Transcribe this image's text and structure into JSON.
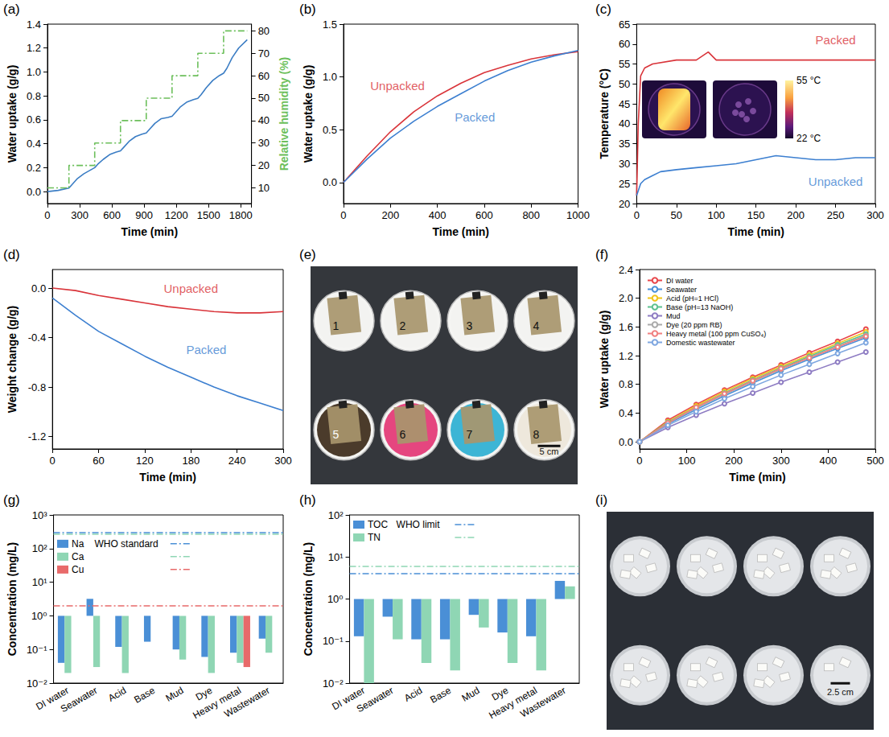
{
  "chart_data": [
    {
      "panel": "(a)",
      "type": "line",
      "x_label": "Time (min)",
      "y_label": "Water uptake (g/g)",
      "y2_label": "Relative humidity (%)",
      "xlim": [
        0,
        1900
      ],
      "xticks": [
        0,
        300,
        600,
        900,
        1200,
        1500,
        1800
      ],
      "ylim": [
        -0.1,
        1.4
      ],
      "yticks": [
        {
          "value": 0,
          "label": "0.0"
        },
        0.2,
        0.4,
        0.6,
        0.8,
        {
          "value": 1,
          "label": "1.0"
        },
        1.2,
        1.4
      ],
      "y2lim": [
        3,
        83
      ],
      "y2ticks": [
        10,
        20,
        30,
        40,
        50,
        60,
        70,
        80
      ],
      "grid": false,
      "series": [
        {
          "color": "#3b7dc4",
          "x": [
            0,
            100,
            200,
            230,
            280,
            340,
            400,
            440,
            470,
            520,
            580,
            640,
            680,
            710,
            760,
            820,
            880,
            920,
            950,
            1000,
            1060,
            1120,
            1160,
            1190,
            1240,
            1300,
            1360,
            1400,
            1430,
            1480,
            1540,
            1600,
            1640,
            1670,
            1720,
            1780,
            1860
          ],
          "values": [
            0,
            0.01,
            0.03,
            0.06,
            0.11,
            0.15,
            0.18,
            0.2,
            0.23,
            0.27,
            0.31,
            0.33,
            0.34,
            0.37,
            0.42,
            0.46,
            0.48,
            0.49,
            0.52,
            0.57,
            0.61,
            0.62,
            0.63,
            0.66,
            0.71,
            0.75,
            0.77,
            0.78,
            0.81,
            0.87,
            0.93,
            0.97,
            0.99,
            1.03,
            1.12,
            1.2,
            1.27
          ]
        },
        {
          "axis": "y2",
          "color": "#6cbf5b",
          "line_style": "dashdot",
          "x": [
            0,
            200,
            200,
            440,
            440,
            680,
            680,
            920,
            920,
            1160,
            1160,
            1400,
            1400,
            1640,
            1640,
            1860
          ],
          "values": [
            10,
            10,
            20,
            20,
            30,
            30,
            40,
            40,
            50,
            50,
            60,
            60,
            70,
            70,
            80,
            80
          ]
        }
      ]
    },
    {
      "panel": "(b)",
      "type": "line",
      "x_label": "Time (min)",
      "y_label": "Water uptake (g/g)",
      "xlim": [
        0,
        1000
      ],
      "xticks": [
        0,
        200,
        400,
        600,
        800,
        1000
      ],
      "ylim": [
        -0.2,
        1.5
      ],
      "yticks": [
        {
          "value": 0,
          "label": "0.0"
        },
        0.5,
        {
          "value": 1,
          "label": "1.0"
        },
        1.5
      ],
      "grid": false,
      "series": [
        {
          "color": "#d9343a",
          "x": [
            0,
            100,
            200,
            300,
            400,
            500,
            600,
            700,
            800,
            900,
            1000
          ],
          "values": [
            0,
            0.25,
            0.48,
            0.67,
            0.82,
            0.94,
            1.04,
            1.11,
            1.17,
            1.21,
            1.24
          ]
        },
        {
          "color": "#3c7fd0",
          "x": [
            0,
            100,
            200,
            300,
            400,
            500,
            600,
            700,
            800,
            900,
            1000
          ],
          "values": [
            0,
            0.22,
            0.42,
            0.58,
            0.72,
            0.84,
            0.96,
            1.06,
            1.14,
            1.2,
            1.25
          ]
        }
      ],
      "annotations": [
        {
          "text": "Unpacked",
          "x": 230,
          "y": 0.92,
          "color": "#d9343a"
        },
        {
          "text": "Packed",
          "x": 560,
          "y": 0.62,
          "color": "#3c7fd0"
        }
      ]
    },
    {
      "panel": "(c)",
      "type": "line",
      "x_label": "Time (min)",
      "y_label": "Temperature (°C)",
      "xlim": [
        0,
        300
      ],
      "xticks": [
        0,
        50,
        100,
        150,
        200,
        250,
        300
      ],
      "ylim": [
        20,
        65
      ],
      "yticks": [
        20,
        25,
        30,
        35,
        40,
        45,
        50,
        55,
        60,
        65
      ],
      "grid": false,
      "series": [
        {
          "color": "#d9343a",
          "x": [
            0,
            2,
            5,
            10,
            20,
            50,
            75,
            90,
            100,
            150,
            200,
            250,
            300
          ],
          "values": [
            22,
            40,
            52,
            54,
            55,
            56,
            56,
            58,
            56,
            56,
            56,
            56,
            56
          ]
        },
        {
          "color": "#3c7fd0",
          "x": [
            0,
            5,
            10,
            20,
            30,
            50,
            75,
            100,
            125,
            150,
            175,
            200,
            225,
            250,
            275,
            300
          ],
          "values": [
            22,
            25,
            26,
            27,
            28,
            28.5,
            29,
            29.5,
            30,
            31,
            32,
            31.5,
            31,
            31,
            31.5,
            31.5
          ]
        }
      ],
      "annotations": [
        {
          "text": "Packed",
          "x": 250,
          "y": 61,
          "color": "#d9343a"
        },
        {
          "text": "Unpacked",
          "x": 250,
          "y": 25.5,
          "color": "#3c7fd0"
        }
      ],
      "inset": {
        "colorbar_range": [
          22,
          55
        ],
        "colorbar_ticks": [
          {
            "value": 55,
            "label": "55 °C"
          },
          {
            "value": 22,
            "label": "22 °C"
          }
        ]
      }
    },
    {
      "panel": "(d)",
      "type": "line",
      "x_label": "Time (min)",
      "y_label": "Weight change (g/g)",
      "xlim": [
        0,
        300
      ],
      "xticks": [
        0,
        60,
        120,
        180,
        240,
        300
      ],
      "ylim": [
        -1.3,
        0.15
      ],
      "yticks": [
        -1.2,
        -0.8,
        -0.4,
        {
          "value": 0,
          "label": "0.0"
        }
      ],
      "grid": false,
      "series": [
        {
          "color": "#d9343a",
          "x": [
            0,
            30,
            60,
            90,
            120,
            150,
            180,
            210,
            240,
            270,
            300
          ],
          "values": [
            0,
            -0.02,
            -0.06,
            -0.09,
            -0.12,
            -0.15,
            -0.17,
            -0.19,
            -0.2,
            -0.2,
            -0.19
          ]
        },
        {
          "color": "#3c7fd0",
          "x": [
            0,
            30,
            60,
            90,
            120,
            150,
            180,
            210,
            240,
            270,
            300
          ],
          "values": [
            -0.08,
            -0.22,
            -0.35,
            -0.45,
            -0.55,
            -0.64,
            -0.72,
            -0.8,
            -0.87,
            -0.93,
            -0.99
          ]
        }
      ],
      "annotations": [
        {
          "text": "Unpacked",
          "x": 180,
          "y": 0,
          "color": "#d9343a"
        },
        {
          "text": "Packed",
          "x": 200,
          "y": -0.5,
          "color": "#3c7fd0"
        }
      ]
    },
    {
      "panel": "(e)",
      "type": "photo",
      "labels": [
        "1",
        "2",
        "3",
        "4",
        "5",
        "6",
        "7",
        "8"
      ],
      "scale_bar": "5 cm"
    },
    {
      "panel": "(f)",
      "type": "line",
      "x_label": "Time (min)",
      "y_label": "Water uptake (g/g)",
      "xlim": [
        0,
        500
      ],
      "xticks": [
        0,
        100,
        200,
        300,
        400,
        500
      ],
      "ylim": [
        -0.1,
        2.4
      ],
      "yticks": [
        {
          "value": 0,
          "label": "0.0"
        },
        0.4,
        0.8,
        1.2,
        1.6,
        {
          "value": 2,
          "label": "2.0"
        },
        2.4
      ],
      "grid": false,
      "legend": "top-left",
      "marker": "circle",
      "x": [
        0,
        60,
        120,
        180,
        240,
        300,
        360,
        420,
        480
      ],
      "series": [
        {
          "name": "DI water",
          "color": "#e8474b",
          "values": [
            0,
            0.3,
            0.52,
            0.72,
            0.9,
            1.07,
            1.24,
            1.4,
            1.57
          ]
        },
        {
          "name": "Seawater",
          "color": "#4a90d9",
          "values": [
            0,
            0.25,
            0.45,
            0.64,
            0.82,
            0.99,
            1.15,
            1.3,
            1.45
          ]
        },
        {
          "name": "Acid (pH=1 HCl)",
          "color": "#f0c419",
          "values": [
            0,
            0.28,
            0.5,
            0.7,
            0.88,
            1.05,
            1.21,
            1.37,
            1.53
          ]
        },
        {
          "name": "Base (pH=13 NaOH)",
          "color": "#5cc18f",
          "values": [
            0,
            0.27,
            0.48,
            0.68,
            0.86,
            1.03,
            1.19,
            1.35,
            1.5
          ]
        },
        {
          "name": "Mud",
          "color": "#8e7cc3",
          "values": [
            0,
            0.2,
            0.37,
            0.53,
            0.68,
            0.83,
            0.97,
            1.11,
            1.25
          ]
        },
        {
          "name": "Dye (20 ppm RB)",
          "color": "#aaaaaa",
          "values": [
            0,
            0.26,
            0.47,
            0.66,
            0.84,
            1.01,
            1.17,
            1.33,
            1.48
          ]
        },
        {
          "name": "Heavy metal (100 ppm CuSO₄)",
          "color": "#f08080",
          "values": [
            0,
            0.26,
            0.48,
            0.67,
            0.85,
            1.02,
            1.17,
            1.32,
            1.47
          ]
        },
        {
          "name": "Domestic wastewater",
          "color": "#7fa7e0",
          "values": [
            0,
            0.23,
            0.42,
            0.6,
            0.77,
            0.93,
            1.08,
            1.23,
            1.38
          ]
        }
      ]
    },
    {
      "panel": "(g)",
      "type": "bar",
      "y_label": "Concentration (mg/L)",
      "log": "y",
      "categories": [
        "DI water",
        "Seawater",
        "Acid",
        "Base",
        "Mud",
        "Dye",
        "Heavy metal",
        "Wastewater"
      ],
      "ylim": [
        0.01,
        1000
      ],
      "yticks": [
        {
          "value": 0.01,
          "label": "10⁻²"
        },
        {
          "value": 0.1,
          "label": "10⁻¹"
        },
        {
          "value": 1,
          "label": "10⁰"
        },
        {
          "value": 10,
          "label": "10¹"
        },
        {
          "value": 100,
          "label": "10²"
        },
        {
          "value": 1000,
          "label": "10³"
        }
      ],
      "grid": false,
      "legend": "top-left",
      "limit_label": "WHO standard",
      "series": [
        {
          "name": "Na",
          "color": "#4a8fd6",
          "values": [
            0.04,
            3.2,
            0.12,
            0.17,
            0.1,
            0.06,
            0.08,
            0.21
          ],
          "limit": 300
        },
        {
          "name": "Ca",
          "color": "#8fd6b4",
          "values": [
            0.02,
            0.03,
            0.02,
            null,
            0.05,
            0.02,
            0.04,
            0.08
          ],
          "limit": 270
        },
        {
          "name": "Cu",
          "color": "#e86a6a",
          "values": [
            null,
            null,
            null,
            null,
            null,
            null,
            0.03,
            null
          ],
          "limit": 2
        }
      ]
    },
    {
      "panel": "(h)",
      "type": "bar",
      "y_label": "Concentration (mg/L)",
      "log": "y",
      "categories": [
        "DI water",
        "Seawater",
        "Acid",
        "Base",
        "Mud",
        "Dye",
        "Heavy metal",
        "Wastewater"
      ],
      "ylim": [
        0.01,
        100
      ],
      "yticks": [
        {
          "value": 0.01,
          "label": "10⁻²"
        },
        {
          "value": 0.1,
          "label": "10⁻¹"
        },
        {
          "value": 1,
          "label": "10⁰"
        },
        {
          "value": 10,
          "label": "10¹"
        },
        {
          "value": 100,
          "label": "10²"
        }
      ],
      "grid": false,
      "legend": "top-left",
      "limit_label": "WHO limit",
      "series": [
        {
          "name": "TOC",
          "color": "#4a8fd6",
          "values": [
            0.13,
            0.38,
            0.11,
            0.11,
            0.42,
            0.16,
            0.13,
            2.7
          ],
          "limit": 4
        },
        {
          "name": "TN",
          "color": "#8fd6b4",
          "values": [
            0.01,
            0.11,
            0.03,
            0.02,
            0.21,
            0.03,
            0.02,
            2.0
          ],
          "limit": 6
        }
      ]
    },
    {
      "panel": "(i)",
      "type": "photo",
      "scale_bar": "2.5 cm"
    }
  ]
}
